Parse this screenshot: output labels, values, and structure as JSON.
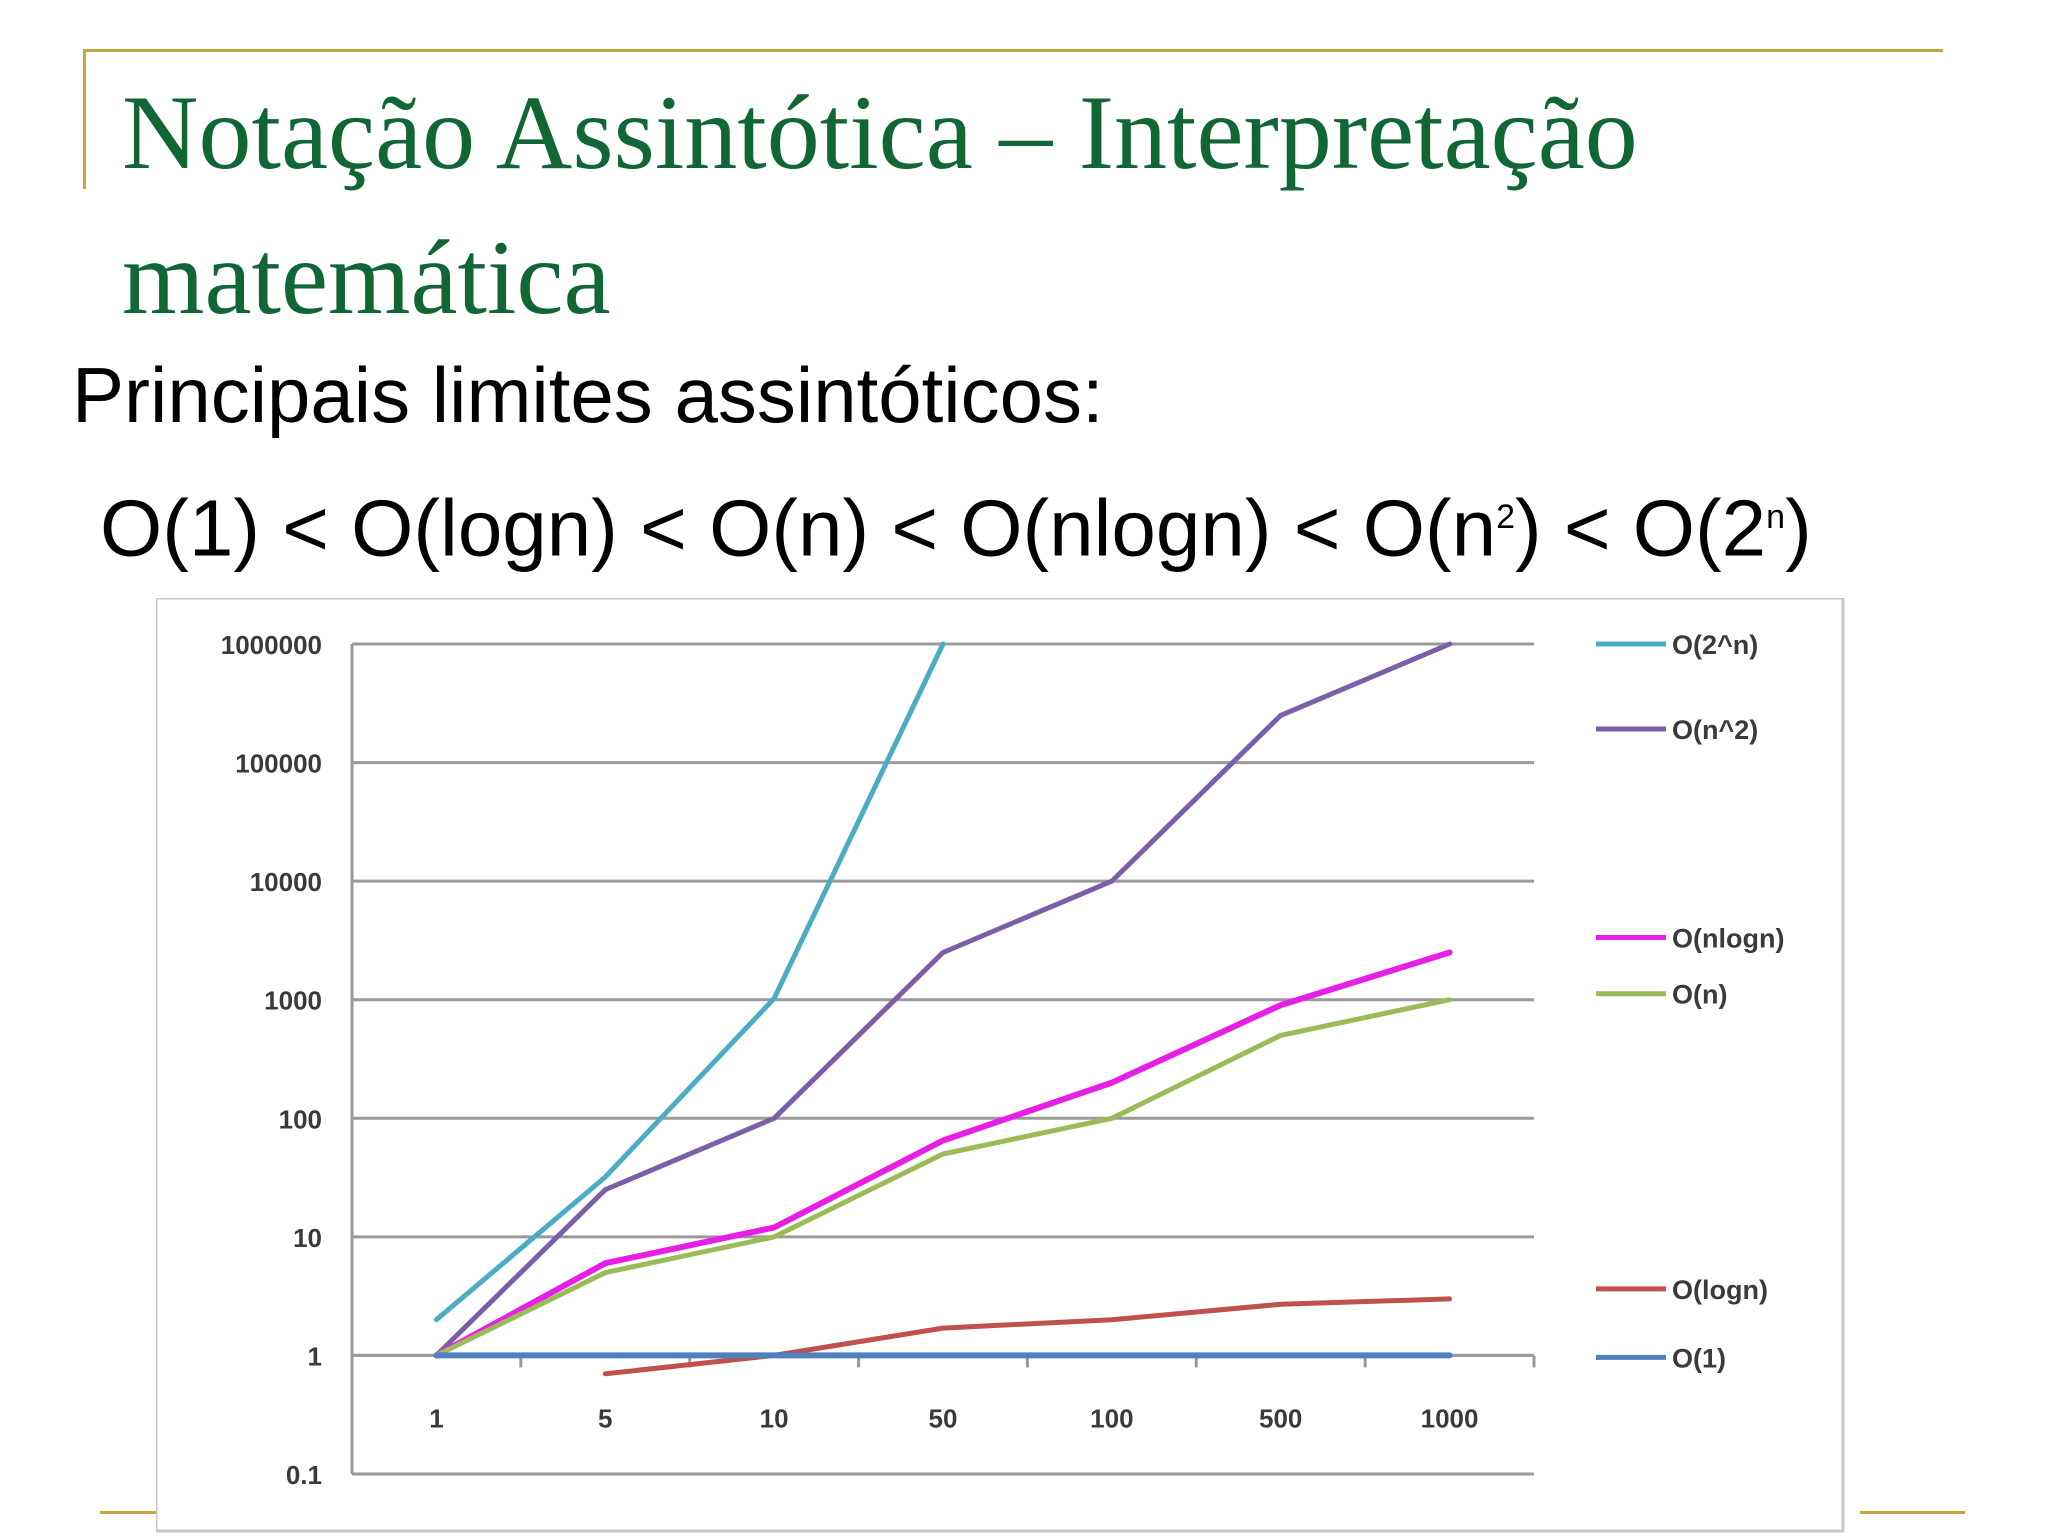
{
  "slide": {
    "title": "Notação Assintótica – Interpretação matemática",
    "subtitle": "Principais limites assintóticos:",
    "ordering": [
      {
        "t": "O(1) < O(logn) < O(n) < O(nlogn) < O(n"
      },
      {
        "sup": "2"
      },
      {
        "t": ") < O(2"
      },
      {
        "sup": "n"
      },
      {
        "t": ")"
      }
    ]
  },
  "chart_data": {
    "type": "line",
    "title": "",
    "xlabel": "",
    "ylabel": "",
    "y_scale": "log",
    "ylim": [
      0.1,
      1000000
    ],
    "grid": true,
    "legend_placement": "right",
    "categories": [
      "1",
      "5",
      "10",
      "50",
      "100",
      "500",
      "1000"
    ],
    "y_ticks": [
      "0.1",
      "1",
      "10",
      "100",
      "1000",
      "10000",
      "100000",
      "1000000"
    ],
    "series": [
      {
        "name": "O(2^n)",
        "color": "#4bacc6",
        "values": [
          2,
          32,
          1024,
          1000000,
          null,
          null,
          null
        ]
      },
      {
        "name": "O(n^2)",
        "color": "#7a5ea8",
        "values": [
          1,
          25,
          100,
          2500,
          10000,
          250000,
          1000000
        ]
      },
      {
        "name": "O(nlogn)",
        "color": "#e61ee6",
        "values": [
          1,
          6,
          12,
          65,
          200,
          900,
          2500
        ]
      },
      {
        "name": "O(n)",
        "color": "#9bbb59",
        "values": [
          1,
          5,
          10,
          50,
          100,
          500,
          1000
        ]
      },
      {
        "name": "O(logn)",
        "color": "#c0504d",
        "values": [
          null,
          0.7,
          1,
          1.7,
          2,
          2.7,
          3
        ]
      },
      {
        "name": "O(1)",
        "color": "#4f81bd",
        "values": [
          1,
          1,
          1,
          1,
          1,
          1,
          1
        ]
      }
    ]
  }
}
